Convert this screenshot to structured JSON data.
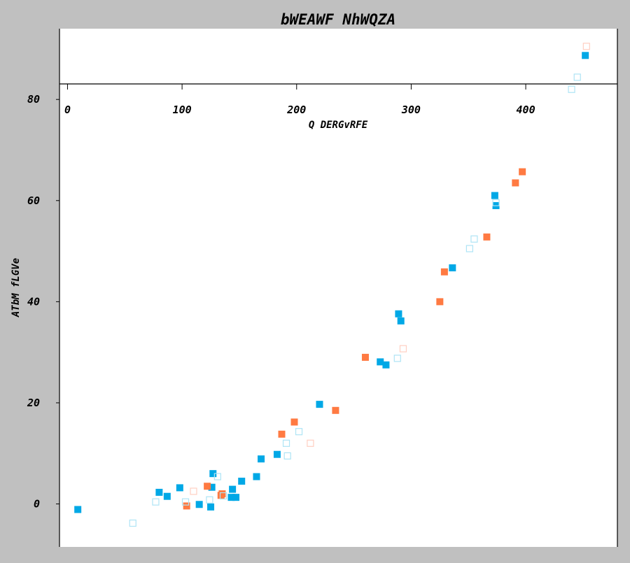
{
  "chart_data": {
    "type": "scatter",
    "title": "bWEAWF NhWQZA",
    "xlabel": "Q DERGvRFE",
    "ylabel": "ATbM fLGVe",
    "xlim": [
      -7,
      480
    ],
    "ylim": [
      -8.5,
      94
    ],
    "x_ticks": [
      "0",
      "100",
      "200",
      "300",
      "400"
    ],
    "x_tick_values": [
      0,
      100,
      200,
      300,
      400
    ],
    "y_ticks": [
      "0",
      "20",
      "40",
      "60",
      "80"
    ],
    "y_tick_values": [
      0,
      20,
      40,
      60,
      80
    ],
    "x_axis_position": "top",
    "grid": false,
    "series": [
      {
        "name": "blue-filled",
        "color": "#00a8e6",
        "marker": "filled-square",
        "points": [
          [
            9,
            -1.1
          ],
          [
            80,
            2.3
          ],
          [
            87,
            1.5
          ],
          [
            98,
            3.2
          ],
          [
            115,
            -0.1
          ],
          [
            125,
            -0.6
          ],
          [
            126,
            3.3
          ],
          [
            127,
            6.0
          ],
          [
            143,
            1.3
          ],
          [
            144,
            2.9
          ],
          [
            147,
            1.3
          ],
          [
            152,
            4.5
          ],
          [
            165,
            5.4
          ],
          [
            169,
            8.9
          ],
          [
            183,
            9.8
          ],
          [
            220,
            19.7
          ],
          [
            273,
            28.1
          ],
          [
            278,
            27.5
          ],
          [
            289,
            37.6
          ],
          [
            291,
            36.2
          ],
          [
            336,
            46.7
          ],
          [
            373,
            61.0
          ],
          [
            374,
            59.0
          ],
          [
            452,
            88.7
          ]
        ]
      },
      {
        "name": "orange-filled",
        "color": "#ff7a42",
        "marker": "filled-square",
        "points": [
          [
            104,
            -0.4
          ],
          [
            122,
            3.5
          ],
          [
            134,
            1.7
          ],
          [
            135,
            2.0
          ],
          [
            187,
            13.8
          ],
          [
            198,
            16.2
          ],
          [
            234,
            18.5
          ],
          [
            260,
            29.0
          ],
          [
            325,
            40.0
          ],
          [
            329,
            45.9
          ],
          [
            366,
            52.8
          ],
          [
            391,
            63.5
          ],
          [
            397,
            65.7
          ]
        ]
      },
      {
        "name": "light-blue-hollow",
        "color": "#aee4f5",
        "marker": "hollow-square",
        "points": [
          [
            57,
            -3.8
          ],
          [
            77,
            0.4
          ],
          [
            103,
            0.4
          ],
          [
            124,
            0.8
          ],
          [
            131,
            5.4
          ],
          [
            136,
            1.6
          ],
          [
            191,
            12.0
          ],
          [
            192,
            9.5
          ],
          [
            202,
            14.3
          ],
          [
            288,
            28.8
          ],
          [
            351,
            50.5
          ],
          [
            355,
            52.4
          ],
          [
            374,
            59.6
          ],
          [
            440,
            82.0
          ],
          [
            445,
            84.4
          ]
        ]
      },
      {
        "name": "light-orange-hollow",
        "color": "#ffcfc2",
        "marker": "hollow-square",
        "points": [
          [
            110,
            2.5
          ],
          [
            212,
            12.0
          ],
          [
            293,
            30.7
          ],
          [
            453,
            90.5
          ]
        ]
      }
    ]
  }
}
